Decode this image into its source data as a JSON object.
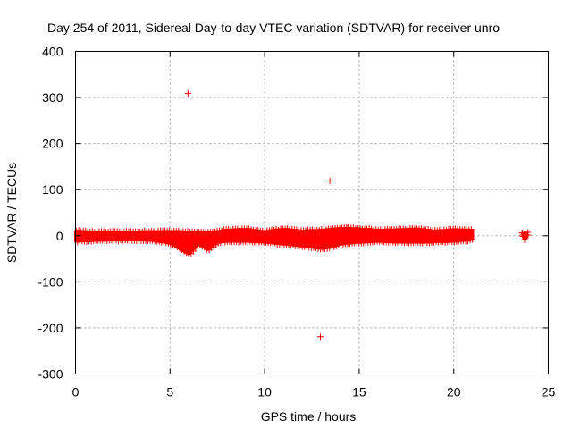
{
  "chart_data": {
    "type": "scatter",
    "title": "Day 254 of 2011, Sidereal Day-to-day VTEC variation (SDTVAR) for receiver unro",
    "xlabel": "GPS time / hours",
    "ylabel": "SDTVAR / TECUs",
    "xlim": [
      0,
      25
    ],
    "ylim": [
      -300,
      400
    ],
    "xticks": [
      0,
      5,
      10,
      15,
      20,
      25
    ],
    "xtick_labels": [
      "0",
      "5",
      "10",
      "15",
      "20",
      "25"
    ],
    "yticks": [
      -300,
      -200,
      -100,
      0,
      100,
      200,
      300,
      400
    ],
    "ytick_labels": [
      "-300",
      "-200",
      "-100",
      "0",
      "100",
      "200",
      "300",
      "400"
    ],
    "grid": true,
    "marker": "plus",
    "series": [
      {
        "name": "SDTVAR",
        "color": "#ff0000",
        "band_envelope": [
          {
            "x": 0.0,
            "lo": -12,
            "hi": 10
          },
          {
            "x": 1.0,
            "lo": -10,
            "hi": 7
          },
          {
            "x": 2.0,
            "lo": -9,
            "hi": 7
          },
          {
            "x": 3.0,
            "lo": -9,
            "hi": 8
          },
          {
            "x": 4.0,
            "lo": -10,
            "hi": 9
          },
          {
            "x": 5.0,
            "lo": -16,
            "hi": 9
          },
          {
            "x": 5.5,
            "lo": -28,
            "hi": 9
          },
          {
            "x": 6.0,
            "lo": -40,
            "hi": 8
          },
          {
            "x": 6.5,
            "lo": -18,
            "hi": 6
          },
          {
            "x": 7.0,
            "lo": -30,
            "hi": 7
          },
          {
            "x": 7.5,
            "lo": -14,
            "hi": 9
          },
          {
            "x": 8.0,
            "lo": -12,
            "hi": 12
          },
          {
            "x": 9.0,
            "lo": -12,
            "hi": 14
          },
          {
            "x": 10.0,
            "lo": -14,
            "hi": 9
          },
          {
            "x": 11.0,
            "lo": -18,
            "hi": 14
          },
          {
            "x": 12.0,
            "lo": -22,
            "hi": 10
          },
          {
            "x": 13.0,
            "lo": -28,
            "hi": 12
          },
          {
            "x": 14.0,
            "lo": -18,
            "hi": 16
          },
          {
            "x": 15.0,
            "lo": -14,
            "hi": 15
          },
          {
            "x": 16.0,
            "lo": -12,
            "hi": 12
          },
          {
            "x": 17.0,
            "lo": -14,
            "hi": 13
          },
          {
            "x": 18.0,
            "lo": -14,
            "hi": 15
          },
          {
            "x": 19.0,
            "lo": -13,
            "hi": 10
          },
          {
            "x": 20.0,
            "lo": -12,
            "hi": 13
          },
          {
            "x": 21.0,
            "lo": -8,
            "hi": 12
          }
        ],
        "band_end": 21.0,
        "cluster": {
          "x_start": 23.6,
          "x_end": 23.95,
          "lo": -10,
          "hi": 10
        },
        "outliers": [
          {
            "x": 5.95,
            "y": 309
          },
          {
            "x": 13.45,
            "y": 119
          },
          {
            "x": 12.95,
            "y": -219
          },
          {
            "x": 11.2,
            "y": 16
          },
          {
            "x": 14.4,
            "y": 18
          }
        ]
      }
    ]
  }
}
